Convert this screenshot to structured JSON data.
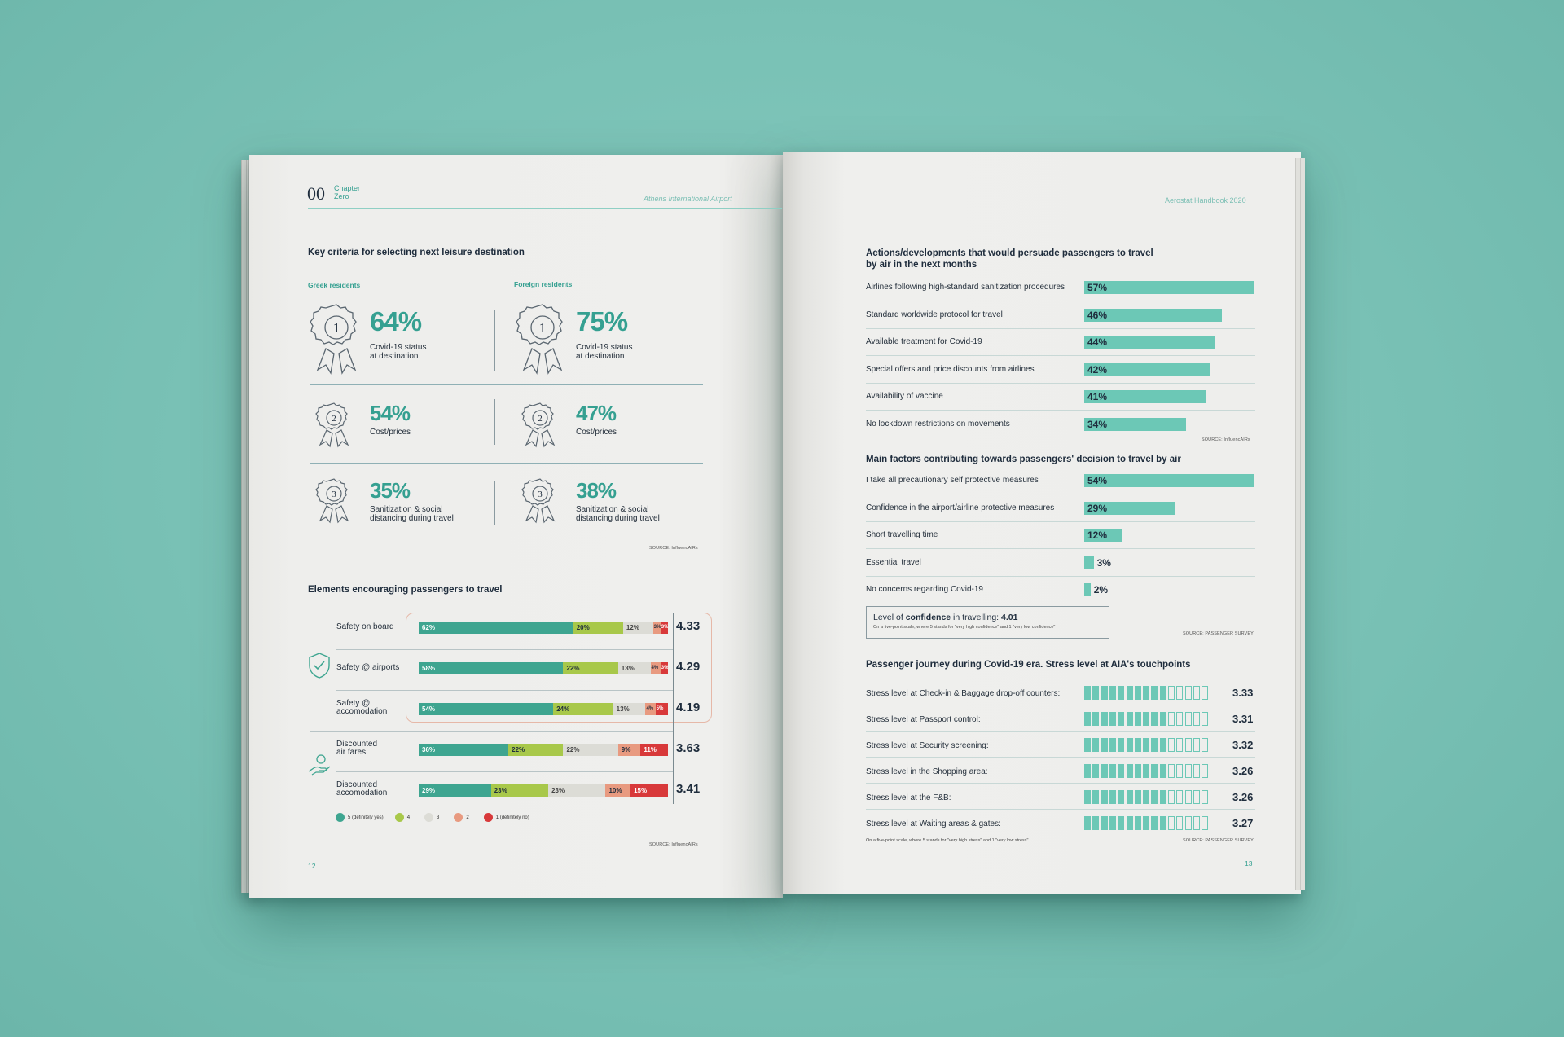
{
  "left_page": {
    "chapter_number": "00",
    "chapter_line1": "Chapter",
    "chapter_line2": "Zero",
    "header_right": "Athens International Airport",
    "page_number": "12",
    "criteria": {
      "title": "Key criteria for selecting next leisure destination",
      "greek_label": "Greek residents",
      "foreign_label": "Foreign residents",
      "rows": [
        {
          "rank": "1",
          "greek_value": "64%",
          "greek_text1": "Covid-19 status",
          "greek_text2": "at destination",
          "foreign_value": "75%",
          "foreign_text1": "Covid-19 status",
          "foreign_text2": "at destination"
        },
        {
          "rank": "2",
          "greek_value": "54%",
          "greek_text1": "Cost/prices",
          "greek_text2": "",
          "foreign_value": "47%",
          "foreign_text1": "Cost/prices",
          "foreign_text2": ""
        },
        {
          "rank": "3",
          "greek_value": "35%",
          "greek_text1": "Sanitization & social",
          "greek_text2": "distancing during travel",
          "foreign_value": "38%",
          "foreign_text1": "Sanitization & social",
          "foreign_text2": "distancing during travel"
        }
      ],
      "source": "SOURCE: InfluencAIRs"
    },
    "elements": {
      "title": "Elements encouraging passengers to travel",
      "rows": [
        {
          "label1": "Safety on board",
          "label2": "",
          "score": "4.33"
        },
        {
          "label1": "Safety @ airports",
          "label2": "",
          "score": "4.29"
        },
        {
          "label1": "Safety @",
          "label2": "accomodation",
          "score": "4.19"
        },
        {
          "label1": "Discounted",
          "label2": "air fares",
          "score": "3.63"
        },
        {
          "label1": "Discounted",
          "label2": "accomodation",
          "score": "3.41"
        }
      ],
      "legend": [
        "5 (definitely yes)",
        "4",
        "3",
        "2",
        "1 (definitely no)"
      ],
      "source": "SOURCE: InfluencAIRs"
    }
  },
  "right_page": {
    "header_right": "Aerostat Handbook 2020",
    "page_number": "13",
    "confidence": {
      "text_pre": "Level of ",
      "text_bold": "confidence",
      "text_mid": " in travelling: ",
      "value": "4.01",
      "note": "On a five-point scale, where 5 stands for \"very high confidence\" and 1 \"very low confidence\""
    },
    "stress_note": "On a five-point scale, where 5 stands for \"very high stress\" and 1 \"very low stress\""
  },
  "colors": {
    "accent": "#35a091",
    "bar": "#6cc8b6",
    "scale_5": "#3ea590",
    "scale_4": "#a8c84a",
    "scale_3": "#dcdcd6",
    "scale_2": "#e89a80",
    "scale_1": "#d8393a"
  },
  "chart_data": [
    {
      "type": "bar",
      "orientation": "horizontal",
      "title": "Actions/developments that would persuade passengers to travel by air in the next months",
      "categories": [
        "Airlines following high-standard sanitization procedures",
        "Standard worldwide protocol for travel",
        "Available treatment for Covid-19",
        "Special offers and price discounts from airlines",
        "Availability of vaccine",
        "No lockdown restrictions on movements"
      ],
      "values": [
        57,
        46,
        44,
        42,
        41,
        34
      ],
      "value_labels": [
        "57%",
        "46%",
        "44%",
        "42%",
        "41%",
        "34%"
      ],
      "xlim": [
        0,
        57
      ],
      "source": "SOURCE: InfluencAIRs"
    },
    {
      "type": "bar",
      "orientation": "horizontal",
      "title": "Main factors contributing towards passengers' decision to travel by air",
      "categories": [
        "I take all precautionary self protective measures",
        "Confidence in the airport/airline protective measures",
        "Short travelling time",
        "Essential travel",
        "No concerns regarding Covid-19"
      ],
      "values": [
        54,
        29,
        12,
        3,
        2
      ],
      "value_labels": [
        "54%",
        "29%",
        "12%",
        "3%",
        "2%"
      ],
      "xlim": [
        0,
        54
      ],
      "source": "SOURCE: PASSENGER SURVEY"
    },
    {
      "type": "bar",
      "orientation": "horizontal",
      "stacked": true,
      "title": "Elements encouraging passengers to travel",
      "categories": [
        "Safety on board",
        "Safety @ airports",
        "Safety @ accomodation",
        "Discounted air fares",
        "Discounted accomodation"
      ],
      "series": [
        {
          "name": "5 (definitely yes)",
          "values": [
            62,
            58,
            54,
            36,
            29
          ]
        },
        {
          "name": "4",
          "values": [
            20,
            22,
            24,
            22,
            23
          ]
        },
        {
          "name": "3",
          "values": [
            12,
            13,
            13,
            22,
            23
          ]
        },
        {
          "name": "2",
          "values": [
            3,
            4,
            4,
            9,
            10
          ]
        },
        {
          "name": "1 (definitely no)",
          "values": [
            3,
            3,
            5,
            11,
            15
          ]
        }
      ],
      "value_labels": [
        [
          "62%",
          "20%",
          "12%",
          "3%",
          "3%"
        ],
        [
          "58%",
          "22%",
          "13%",
          "4%",
          "3%"
        ],
        [
          "54%",
          "24%",
          "13%",
          "4%",
          "5%"
        ],
        [
          "36%",
          "22%",
          "22%",
          "9%",
          "11%"
        ],
        [
          "29%",
          "23%",
          "23%",
          "10%",
          "15%"
        ]
      ],
      "scores": [
        "4.33",
        "4.29",
        "4.19",
        "3.63",
        "3.41"
      ]
    },
    {
      "type": "bar",
      "orientation": "horizontal",
      "title": "Passenger journey during Covid-19 era. Stress level at AIA's touchpoints",
      "categories": [
        "Stress level at Check-in & Baggage drop-off counters:",
        "Stress level at Passport control:",
        "Stress level at Security screening:",
        "Stress level in the Shopping area:",
        "Stress level at the F&B:",
        "Stress level at Waiting areas & gates:"
      ],
      "values": [
        3.33,
        3.31,
        3.32,
        3.26,
        3.26,
        3.27
      ],
      "value_labels": [
        "3.33",
        "3.31",
        "3.32",
        "3.26",
        "3.26",
        "3.27"
      ],
      "scale_max": 5,
      "segments": 15,
      "source": "SOURCE: PASSENGER SURVEY"
    }
  ]
}
